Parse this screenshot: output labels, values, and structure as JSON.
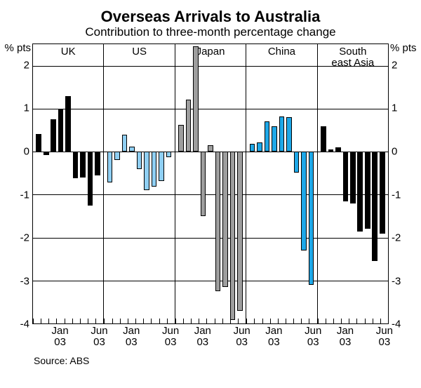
{
  "title": "Overseas Arrivals to Australia",
  "subtitle": "Contribution to three-month percentage change",
  "y_unit": "% pts",
  "ylim": [
    -4,
    2.5
  ],
  "y_ticks": [
    2,
    1,
    0,
    -1,
    -2,
    -3,
    -4
  ],
  "y_tick_labels": [
    "2",
    "1",
    "0",
    "-1",
    "-2",
    "-3",
    "-4"
  ],
  "panels": [
    {
      "label": "UK",
      "color": "#000000",
      "values": [
        0.42,
        -0.08,
        0.75,
        1.0,
        1.3,
        -0.62,
        -0.6,
        -1.25,
        -0.55
      ],
      "xtick_labels": [
        "Jan\n03",
        "Jun\n03"
      ],
      "xtick_pos": [
        0.39,
        0.94
      ]
    },
    {
      "label": "US",
      "color": "#8fcff3",
      "values": [
        -0.72,
        -0.19,
        0.4,
        0.12,
        -0.4,
        -0.9,
        -0.82,
        -0.68,
        -0.12
      ],
      "xtick_labels": [
        "Jan\n03",
        "Jun\n03"
      ],
      "xtick_pos": [
        0.39,
        0.94
      ]
    },
    {
      "label": "Japan",
      "color": "#9e9e9e",
      "values": [
        0.62,
        1.22,
        2.45,
        -1.5,
        0.15,
        -3.25,
        -3.15,
        -3.92,
        -3.7
      ],
      "xtick_labels": [
        "Jan\n03",
        "Jun\n03"
      ],
      "xtick_pos": [
        0.39,
        0.94
      ]
    },
    {
      "label": "China",
      "color": "#1ea8e8",
      "values": [
        0.18,
        0.22,
        0.7,
        0.6,
        0.82,
        0.8,
        -0.48,
        -2.3,
        -3.1
      ],
      "xtick_labels": [
        "Jan\n03",
        "Jun\n03"
      ],
      "xtick_pos": [
        0.39,
        0.94
      ]
    },
    {
      "label": "South\neast Asia",
      "color": "#000000",
      "values": [
        0.6,
        0.05,
        0.1,
        -1.15,
        -1.2,
        -1.85,
        -1.8,
        -2.55,
        -1.9
      ],
      "xtick_labels": [
        "Jan\n03",
        "Jun\n03"
      ],
      "xtick_pos": [
        0.39,
        0.94
      ]
    }
  ],
  "grid_color": "#000000",
  "background_color": "#ffffff",
  "source": "Source: ABS"
}
